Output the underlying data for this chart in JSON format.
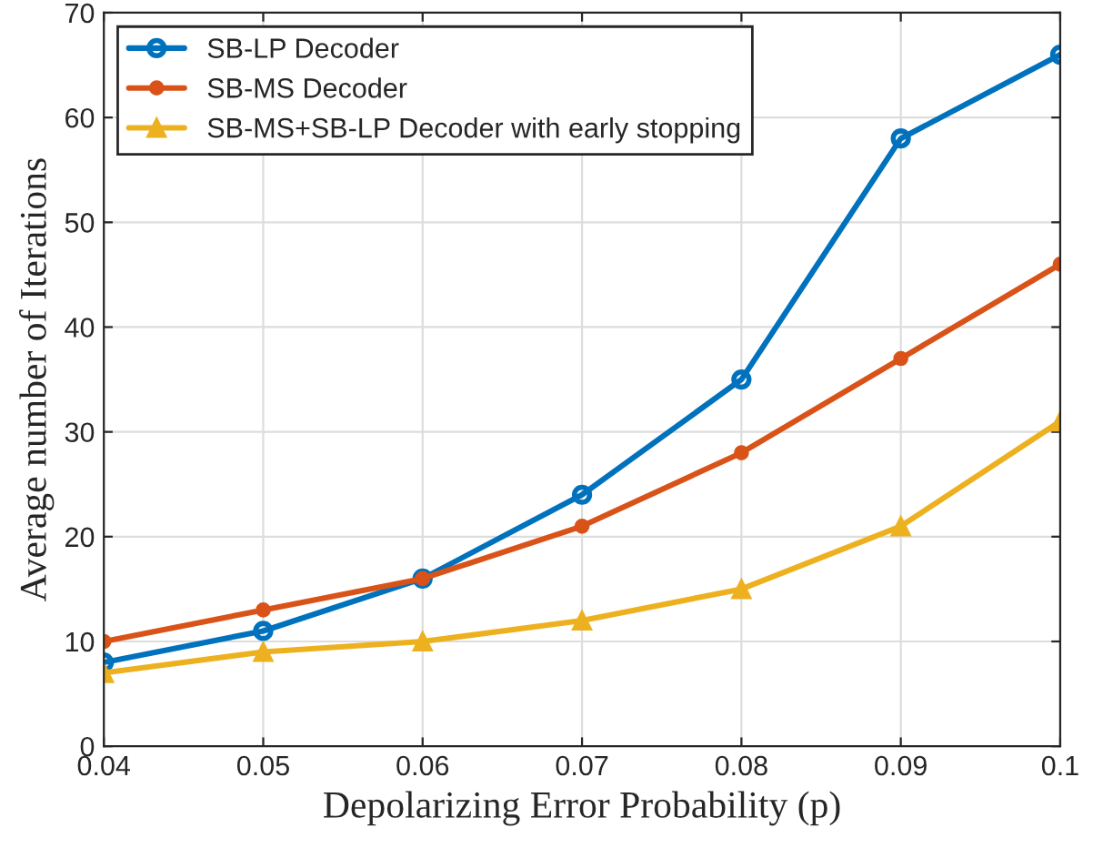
{
  "chart_data": {
    "type": "line",
    "xlabel": "Depolarizing Error Probability (p)",
    "ylabel": "Average number of Iterations",
    "x": [
      0.04,
      0.05,
      0.06,
      0.07,
      0.08,
      0.09,
      0.1
    ],
    "series": [
      {
        "name": "SB-LP Decoder",
        "color": "#0072bd",
        "marker": "circle",
        "values": [
          8,
          11,
          16,
          24,
          35,
          58,
          66
        ]
      },
      {
        "name": "SB-MS Decoder",
        "color": "#d95319",
        "marker": "circle",
        "values": [
          10,
          13,
          16,
          21,
          28,
          37,
          46
        ]
      },
      {
        "name": "SB-MS+SB-LP Decoder with early stopping",
        "color": "#edb120",
        "marker": "triangle",
        "values": [
          7,
          9,
          10,
          12,
          15,
          21,
          31
        ]
      }
    ],
    "xlim": [
      0.04,
      0.1
    ],
    "ylim": [
      0,
      70
    ],
    "xticks": [
      0.04,
      0.05,
      0.06,
      0.07,
      0.08,
      0.09,
      0.1
    ],
    "yticks": [
      0,
      10,
      20,
      30,
      40,
      50,
      60,
      70
    ],
    "grid": true,
    "legend": "top left",
    "line_style": "solid"
  }
}
